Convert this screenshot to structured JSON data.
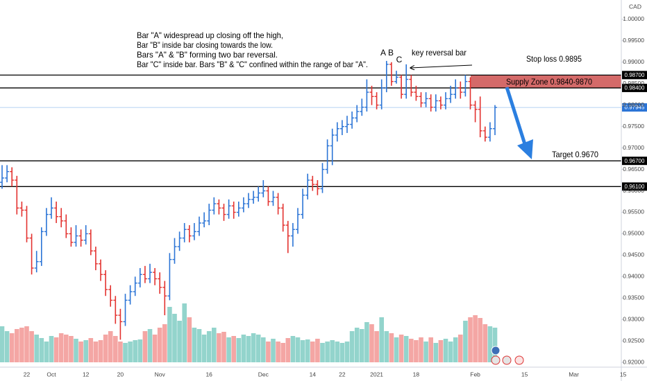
{
  "chart_data": {
    "type": "ohlc",
    "currency": "CAD",
    "categories": [
      null,
      null,
      null,
      null,
      null,
      "22",
      null,
      null,
      null,
      null,
      "Oct",
      null,
      null,
      null,
      null,
      null,
      null,
      "12",
      null,
      null,
      null,
      null,
      null,
      null,
      "20",
      null,
      null,
      null,
      null,
      null,
      null,
      null,
      "Nov",
      null,
      null,
      null,
      null,
      null,
      null,
      null,
      null,
      null,
      "16",
      null,
      null,
      null,
      null,
      null,
      null,
      null,
      null,
      null,
      null,
      "Dec",
      null,
      null,
      null,
      null,
      null,
      null,
      null,
      null,
      null,
      "14",
      null,
      null,
      null,
      null,
      null,
      "22",
      null,
      null,
      null,
      null,
      null,
      null,
      "2021",
      null,
      null,
      null,
      null,
      null,
      null,
      null,
      "18",
      null,
      null,
      null,
      null,
      null,
      null,
      null,
      null,
      null,
      null,
      null,
      "Feb",
      null,
      null,
      null,
      null,
      null,
      null,
      null,
      null,
      null,
      "15",
      null,
      null,
      null,
      null,
      null,
      null,
      null,
      null,
      null,
      "Mar",
      null,
      null,
      null,
      null,
      null,
      null,
      null,
      null,
      null,
      "15"
    ],
    "open": [
      0.962,
      0.963,
      0.9645,
      0.9625,
      0.956,
      0.9555,
      0.949,
      0.942,
      0.9435,
      0.9505,
      0.9545,
      0.956,
      0.954,
      0.953,
      0.95,
      0.948,
      0.9495,
      0.9485,
      0.95,
      0.946,
      0.943,
      0.9405,
      0.937,
      0.9345,
      0.931,
      0.9295,
      0.9345,
      0.9365,
      0.9385,
      0.9405,
      0.9395,
      0.941,
      0.9395,
      0.9375,
      0.9355,
      0.944,
      0.947,
      0.949,
      0.951,
      0.9495,
      0.9505,
      0.9525,
      0.953,
      0.9555,
      0.957,
      0.956,
      0.9545,
      0.9565,
      0.955,
      0.956,
      0.957,
      0.958,
      0.9585,
      0.9595,
      0.96,
      0.9575,
      0.9585,
      0.956,
      0.952,
      0.9495,
      0.951,
      0.9545,
      0.959,
      0.9625,
      0.9615,
      0.9605,
      0.965,
      0.9705,
      0.973,
      0.9745,
      0.975,
      0.9755,
      0.977,
      0.9785,
      0.9795,
      0.983,
      0.982,
      0.98,
      0.984,
      0.9895,
      0.9855,
      0.9865,
      0.9825,
      0.986,
      0.983,
      0.982,
      0.9805,
      0.9815,
      0.9795,
      0.981,
      0.98,
      0.9815,
      0.9825,
      0.984,
      0.983,
      0.9855,
      0.98,
      0.979,
      0.974,
      0.9725,
      0.9745,
      null,
      null,
      null,
      null,
      null,
      null,
      null,
      null,
      null,
      null,
      null,
      null,
      null,
      null,
      null,
      null,
      null,
      null,
      null,
      null,
      null,
      null,
      null,
      null,
      null,
      null
    ],
    "high": [
      0.966,
      0.966,
      0.9655,
      0.9635,
      0.9575,
      0.9565,
      0.95,
      0.946,
      0.9515,
      0.956,
      0.9585,
      0.9575,
      0.956,
      0.9545,
      0.9515,
      0.952,
      0.951,
      0.952,
      0.951,
      0.947,
      0.944,
      0.9415,
      0.938,
      0.9355,
      0.9325,
      0.936,
      0.938,
      0.94,
      0.942,
      0.9425,
      0.943,
      0.942,
      0.941,
      0.939,
      0.9455,
      0.949,
      0.9505,
      0.9525,
      0.952,
      0.9525,
      0.954,
      0.955,
      0.957,
      0.9585,
      0.958,
      0.957,
      0.958,
      0.9575,
      0.9575,
      0.9585,
      0.9595,
      0.96,
      0.961,
      0.9625,
      0.961,
      0.96,
      0.9595,
      0.957,
      0.953,
      0.9525,
      0.956,
      0.9605,
      0.964,
      0.9635,
      0.9625,
      0.9665,
      0.972,
      0.9745,
      0.976,
      0.9765,
      0.9775,
      0.9785,
      0.98,
      0.9815,
      0.986,
      0.9845,
      0.983,
      0.986,
      0.9903,
      0.99,
      0.988,
      0.987,
      0.9895,
      0.987,
      0.9845,
      0.983,
      0.983,
      0.9825,
      0.9825,
      0.982,
      0.983,
      0.9845,
      0.986,
      0.9855,
      0.987,
      0.9865,
      0.981,
      0.982,
      0.975,
      0.976,
      0.98,
      null,
      null,
      null,
      null,
      null,
      null,
      null,
      null,
      null,
      null,
      null,
      null,
      null,
      null,
      null,
      null,
      null,
      null,
      null,
      null,
      null,
      null,
      null,
      null,
      null,
      null
    ],
    "low": [
      0.9605,
      0.962,
      0.961,
      0.9545,
      0.954,
      0.948,
      0.9405,
      0.941,
      0.9425,
      0.9495,
      0.9535,
      0.9525,
      0.9515,
      0.949,
      0.947,
      0.947,
      0.947,
      0.9475,
      0.945,
      0.9415,
      0.939,
      0.9355,
      0.933,
      0.929,
      0.9253,
      0.9285,
      0.9335,
      0.9355,
      0.9375,
      0.9385,
      0.9385,
      0.938,
      0.936,
      0.931,
      0.9345,
      0.943,
      0.946,
      0.948,
      0.948,
      0.9485,
      0.9495,
      0.9515,
      0.952,
      0.9545,
      0.9545,
      0.953,
      0.9535,
      0.9535,
      0.954,
      0.955,
      0.956,
      0.957,
      0.9575,
      0.9585,
      0.9565,
      0.9565,
      0.9545,
      0.9505,
      0.9455,
      0.947,
      0.95,
      0.9535,
      0.958,
      0.96,
      0.959,
      0.9595,
      0.964,
      0.966,
      0.9715,
      0.973,
      0.9735,
      0.9745,
      0.976,
      0.9775,
      0.9785,
      0.98,
      0.979,
      0.979,
      0.983,
      0.9845,
      0.985,
      0.9815,
      0.9815,
      0.982,
      0.981,
      0.9795,
      0.9795,
      0.9785,
      0.9785,
      0.979,
      0.979,
      0.9805,
      0.9815,
      0.9815,
      0.982,
      0.979,
      0.976,
      0.9725,
      0.9715,
      0.9715,
      0.973,
      null,
      null,
      null,
      null,
      null,
      null,
      null,
      null,
      null,
      null,
      null,
      null,
      null,
      null,
      null,
      null,
      null,
      null,
      null,
      null,
      null,
      null,
      null,
      null,
      null,
      null
    ],
    "close": [
      0.963,
      0.9645,
      0.9625,
      0.956,
      0.9555,
      0.949,
      0.942,
      0.9435,
      0.9505,
      0.9545,
      0.956,
      0.954,
      0.953,
      0.95,
      0.948,
      0.9495,
      0.9485,
      0.95,
      0.946,
      0.943,
      0.9405,
      0.937,
      0.9345,
      0.931,
      0.9295,
      0.9345,
      0.9365,
      0.9385,
      0.9405,
      0.9395,
      0.941,
      0.9395,
      0.9375,
      0.9355,
      0.944,
      0.947,
      0.949,
      0.951,
      0.9495,
      0.9505,
      0.9525,
      0.953,
      0.9555,
      0.957,
      0.956,
      0.9545,
      0.9565,
      0.955,
      0.956,
      0.957,
      0.958,
      0.9585,
      0.9595,
      0.96,
      0.9575,
      0.9585,
      0.956,
      0.952,
      0.9495,
      0.951,
      0.9545,
      0.959,
      0.9625,
      0.9615,
      0.9605,
      0.965,
      0.9705,
      0.973,
      0.9745,
      0.975,
      0.9755,
      0.977,
      0.9785,
      0.9795,
      0.983,
      0.982,
      0.98,
      0.984,
      0.9895,
      0.9855,
      0.9865,
      0.9825,
      0.986,
      0.983,
      0.982,
      0.9805,
      0.9815,
      0.9795,
      0.981,
      0.98,
      0.9815,
      0.9825,
      0.984,
      0.983,
      0.9855,
      0.98,
      0.979,
      0.974,
      0.9725,
      0.9745,
      0.97945,
      null,
      null,
      null,
      null,
      null,
      null,
      null,
      null,
      null,
      null,
      null,
      null,
      null,
      null,
      null,
      null,
      null,
      null,
      null,
      null,
      null,
      null,
      null,
      null,
      null,
      null
    ],
    "volume": [
      52,
      45,
      42,
      48,
      50,
      52,
      45,
      40,
      35,
      30,
      38,
      36,
      42,
      40,
      38,
      34,
      30,
      32,
      35,
      30,
      32,
      40,
      45,
      38,
      30,
      28,
      30,
      32,
      33,
      45,
      48,
      40,
      50,
      55,
      80,
      70,
      60,
      85,
      65,
      50,
      48,
      40,
      45,
      50,
      42,
      44,
      36,
      38,
      35,
      40,
      38,
      42,
      40,
      36,
      30,
      34,
      30,
      28,
      35,
      38,
      36,
      32,
      33,
      30,
      34,
      28,
      30,
      32,
      30,
      28,
      30,
      45,
      50,
      48,
      58,
      55,
      45,
      65,
      45,
      42,
      36,
      40,
      38,
      34,
      32,
      36,
      30,
      36,
      28,
      32,
      34,
      30,
      36,
      40,
      60,
      65,
      68,
      64,
      55,
      52,
      50,
      null,
      null,
      null,
      null,
      null,
      null,
      null,
      null,
      null,
      null,
      null,
      null,
      null,
      null,
      null,
      null,
      null,
      null,
      null,
      null,
      null,
      null,
      null,
      null,
      null,
      null
    ],
    "up_color": "#2b74d6",
    "down_color": "#e3322f",
    "volume_up_color": "#93d4cc",
    "volume_down_color": "#f4a6a4",
    "ylim": [
      0.9189,
      1.0045
    ],
    "yticks": [
      {
        "value": 0.92,
        "label": "0.92000"
      },
      {
        "value": 0.925,
        "label": "0.92500"
      },
      {
        "value": 0.93,
        "label": "0.93000"
      },
      {
        "value": 0.935,
        "label": "0.93500"
      },
      {
        "value": 0.94,
        "label": "0.94000"
      },
      {
        "value": 0.945,
        "label": "0.94500"
      },
      {
        "value": 0.95,
        "label": "0.95000"
      },
      {
        "value": 0.955,
        "label": "0.95500"
      },
      {
        "value": 0.96,
        "label": "0.96000"
      },
      {
        "value": 0.965,
        "label": "0.96500"
      },
      {
        "value": 0.97,
        "label": "0.97000"
      },
      {
        "value": 0.975,
        "label": "0.97500"
      },
      {
        "value": 0.98,
        "label": "0.98000"
      },
      {
        "value": 0.985,
        "label": "0.98500"
      },
      {
        "value": 0.99,
        "label": "0.99000"
      },
      {
        "value": 0.995,
        "label": "0.99500"
      },
      {
        "value": 1.0,
        "label": "1.00000"
      }
    ],
    "levels": [
      {
        "value": 0.987,
        "label": "0.98700",
        "color": "#000000"
      },
      {
        "value": 0.984,
        "label": "0.98400",
        "color": "#000000"
      },
      {
        "value": 0.97945,
        "label": "0.97945",
        "color": "#2b74d6"
      },
      {
        "value": 0.967,
        "label": "0.96700",
        "color": "#000000"
      },
      {
        "value": 0.961,
        "label": "0.96100",
        "color": "#000000"
      }
    ],
    "zone": {
      "from": 0.984,
      "to": 0.987,
      "label": "Supply Zone 0.9840-9870",
      "color": "#d46a69"
    },
    "notes": [
      "Bar \"A\" widespread up closing off the high,",
      "Bar \"B\" inside bar closing towards the low.",
      "Bars \"A\" & \"B\" forming two bar reversal.",
      "Bar \"C\" inside bar. Bars \"B\" & \"C\" confined within the range of bar \"A\"."
    ],
    "bar_labels": [
      "A",
      "B",
      "C"
    ],
    "key_reversal": "key reversal bar",
    "stop_loss": "Stop loss 0.9895",
    "target": "Target 0.9670"
  }
}
